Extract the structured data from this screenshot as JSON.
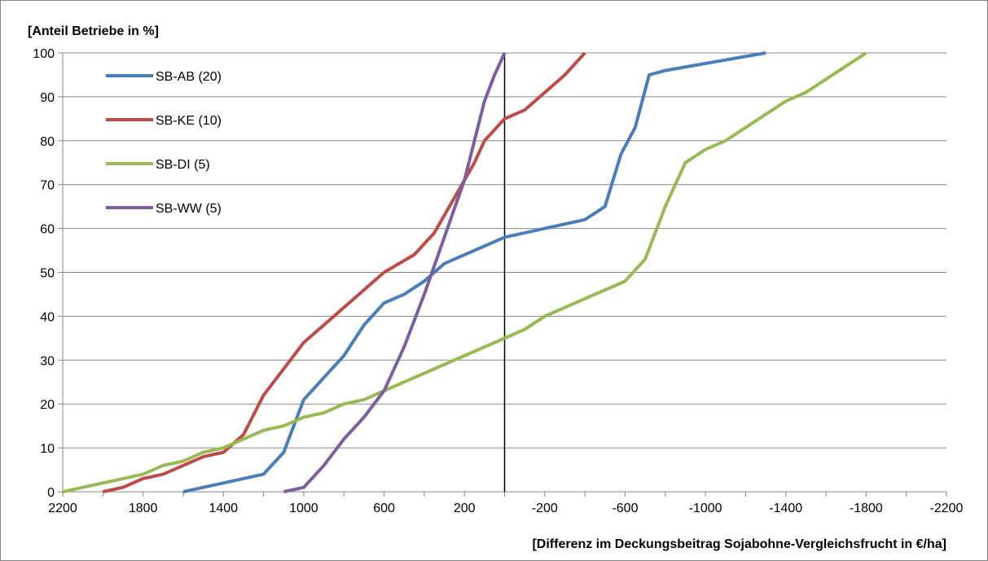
{
  "chart_data": {
    "type": "line",
    "title": "",
    "ylabel": "[Anteil Betriebe in  %]",
    "xlabel": "[Differenz im Deckungsbeitrag Sojabohne-Vergleichsfrucht in €/ha]",
    "xlim": [
      2200,
      -2200
    ],
    "ylim": [
      0,
      100
    ],
    "x_reversed": true,
    "x_ticks": [
      2200,
      1800,
      1400,
      1000,
      600,
      200,
      -200,
      -600,
      -1000,
      -1400,
      -1800,
      -2200
    ],
    "y_ticks": [
      0,
      10,
      20,
      30,
      40,
      50,
      60,
      70,
      80,
      90,
      100
    ],
    "grid": "horizontal",
    "legend_position": "top-left",
    "reference_line_x": 0,
    "series": [
      {
        "name": "SB-AB (20)",
        "color": "#4a7ebb",
        "points": [
          [
            1600,
            0
          ],
          [
            1500,
            1
          ],
          [
            1200,
            4
          ],
          [
            1100,
            9
          ],
          [
            1000,
            21
          ],
          [
            800,
            31
          ],
          [
            700,
            38
          ],
          [
            600,
            43
          ],
          [
            500,
            45
          ],
          [
            400,
            48
          ],
          [
            300,
            52
          ],
          [
            0,
            58
          ],
          [
            -200,
            60
          ],
          [
            -400,
            62
          ],
          [
            -500,
            65
          ],
          [
            -580,
            77
          ],
          [
            -650,
            83
          ],
          [
            -720,
            95
          ],
          [
            -800,
            96
          ],
          [
            -1300,
            100
          ]
        ]
      },
      {
        "name": "SB-KE (10)",
        "color": "#be4b48",
        "points": [
          [
            2000,
            0
          ],
          [
            1900,
            1
          ],
          [
            1800,
            3
          ],
          [
            1700,
            4
          ],
          [
            1500,
            8
          ],
          [
            1400,
            9
          ],
          [
            1300,
            13
          ],
          [
            1200,
            22
          ],
          [
            1000,
            34
          ],
          [
            900,
            38
          ],
          [
            600,
            50
          ],
          [
            450,
            54
          ],
          [
            350,
            59
          ],
          [
            250,
            67
          ],
          [
            150,
            75
          ],
          [
            100,
            80
          ],
          [
            0,
            85
          ],
          [
            -100,
            87
          ],
          [
            -300,
            95
          ],
          [
            -400,
            100
          ]
        ]
      },
      {
        "name": "SB-DI (5)",
        "color": "#98b954",
        "points": [
          [
            2200,
            0
          ],
          [
            2100,
            1
          ],
          [
            1800,
            4
          ],
          [
            1700,
            6
          ],
          [
            1600,
            7
          ],
          [
            1500,
            9
          ],
          [
            1400,
            10
          ],
          [
            1300,
            12
          ],
          [
            1200,
            14
          ],
          [
            1100,
            15
          ],
          [
            1000,
            17
          ],
          [
            900,
            18
          ],
          [
            800,
            20
          ],
          [
            700,
            21
          ],
          [
            600,
            23
          ],
          [
            -100,
            37
          ],
          [
            -200,
            40
          ],
          [
            -600,
            48
          ],
          [
            -700,
            53
          ],
          [
            -800,
            65
          ],
          [
            -900,
            75
          ],
          [
            -1000,
            78
          ],
          [
            -1100,
            80
          ],
          [
            -1400,
            89
          ],
          [
            -1500,
            91
          ],
          [
            -1800,
            100
          ]
        ]
      },
      {
        "name": "SB-WW (5)",
        "color": "#7d5fa0",
        "points": [
          [
            1100,
            0
          ],
          [
            1000,
            1
          ],
          [
            900,
            6
          ],
          [
            800,
            12
          ],
          [
            700,
            17
          ],
          [
            600,
            23
          ],
          [
            500,
            33
          ],
          [
            400,
            45
          ],
          [
            300,
            58
          ],
          [
            200,
            71
          ],
          [
            100,
            89
          ],
          [
            50,
            95
          ],
          [
            0,
            100
          ]
        ]
      }
    ]
  }
}
